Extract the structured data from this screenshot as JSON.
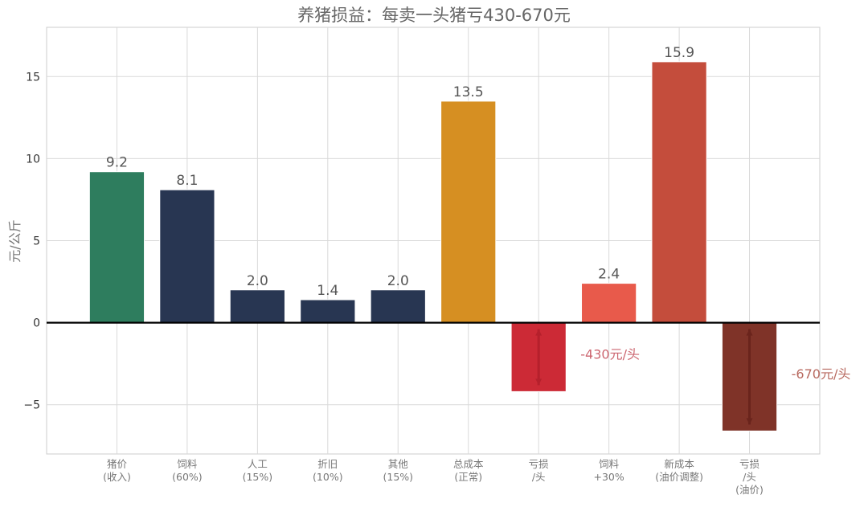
{
  "chart_data": {
    "type": "bar",
    "title": "养猪损益：每卖一头猪亏430-670元",
    "ylabel": "元/公斤",
    "xlabel": "",
    "ylim": [
      -8,
      18
    ],
    "yticks": [
      -5,
      0,
      5,
      10,
      15
    ],
    "ytick_labels": [
      "−5",
      "0",
      "5",
      "10",
      "15"
    ],
    "grid": true,
    "categories": [
      [
        "猪价",
        "(收入)"
      ],
      [
        "饲料",
        "(60%)"
      ],
      [
        "人工",
        "(15%)"
      ],
      [
        "折旧",
        "(10%)"
      ],
      [
        "其他",
        "(15%)"
      ],
      [
        "总成本",
        "(正常)"
      ],
      [
        "亏损",
        "/头"
      ],
      [
        "饲料",
        "+30%"
      ],
      [
        "新成本",
        "(油价调整)"
      ],
      [
        "亏损",
        "/头",
        "(油价)"
      ]
    ],
    "values": [
      9.2,
      8.1,
      2.0,
      1.4,
      2.0,
      13.5,
      -4.2,
      2.4,
      15.9,
      -6.6
    ],
    "value_labels": [
      "9.2",
      "8.1",
      "2.0",
      "1.4",
      "2.0",
      "13.5",
      "",
      "2.4",
      "15.9",
      ""
    ],
    "colors": [
      "#2e7d5e",
      "#283652",
      "#283652",
      "#283652",
      "#283652",
      "#d68f22",
      "#cc2a36",
      "#e85a4b",
      "#c44d3c",
      "#7f3328"
    ],
    "annotations": [
      {
        "bar_index": 6,
        "text": "-430元/头",
        "color": "#cc6670",
        "arrow_color": "#b5202c"
      },
      {
        "bar_index": 9,
        "text": "-670元/头",
        "color": "#b86a60",
        "arrow_color": "#6a241c"
      }
    ],
    "zero_line_color": "#000000"
  }
}
